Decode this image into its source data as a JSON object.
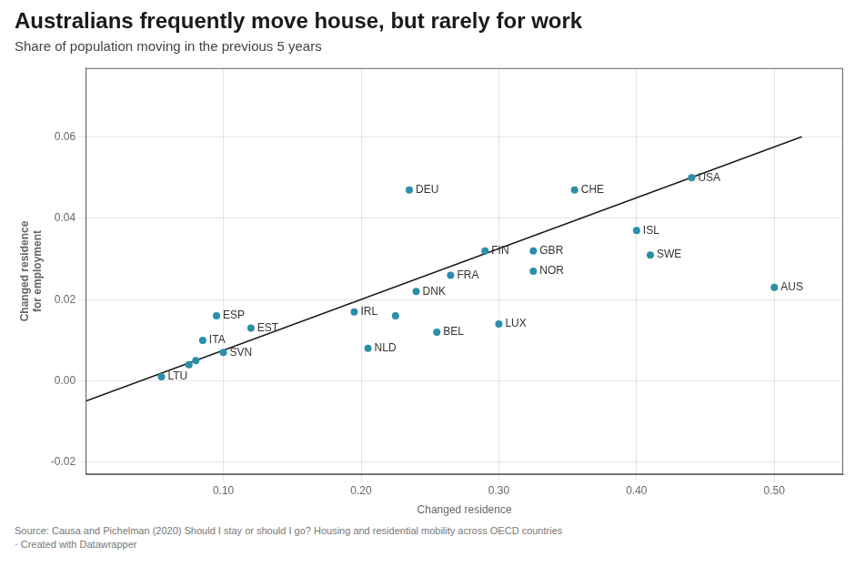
{
  "chart_data": {
    "type": "scatter",
    "title": "Australians frequently move house, but rarely for work",
    "subtitle": "Share of population moving in the previous 5 years",
    "x_label": "Changed residence",
    "y_label": "Changed residence\nfor employment",
    "source": "Source: Causa and Pichelman (2020) Should I stay or should I go? Housing and residential mobility across OECD countries\n· Created with Datawrapper",
    "xlim": [
      0.0,
      0.55
    ],
    "ylim": [
      -0.023,
      0.077
    ],
    "xticks": [
      {
        "value": 0.1,
        "label": "0.10"
      },
      {
        "value": 0.2,
        "label": "0.20"
      },
      {
        "value": 0.3,
        "label": "0.30"
      },
      {
        "value": 0.4,
        "label": "0.40"
      },
      {
        "value": 0.5,
        "label": "0.50"
      }
    ],
    "yticks": [
      -0.02,
      {
        "value": 0,
        "label": "0.00"
      },
      0.02,
      0.04,
      0.06
    ],
    "grid": true,
    "series": [
      {
        "type": "line",
        "x": [
          0.0,
          0.52
        ],
        "values": [
          -0.005,
          0.060104
        ],
        "color": "#1a1a1a"
      },
      {
        "type": "scatter",
        "x": [
          0.075,
          0.08,
          0.225
        ],
        "values": [
          0.004,
          0.005,
          0.016
        ],
        "color": "#2b8fa8"
      },
      {
        "type": "scatter",
        "x": [
          0.055,
          0.085,
          0.1,
          0.095,
          0.12,
          0.195,
          0.205,
          0.24,
          0.255,
          0.265,
          0.235,
          0.29,
          0.3,
          0.325,
          0.325,
          0.355,
          0.4,
          0.41,
          0.44,
          0.5
        ],
        "values": [
          0.001,
          0.01,
          0.007,
          0.016,
          0.013,
          0.017,
          0.008,
          0.022,
          0.012,
          0.026,
          0.047,
          0.032,
          0.014,
          0.032,
          0.027,
          0.047,
          0.037,
          0.031,
          0.05,
          0.023
        ],
        "labels": [
          "LTU",
          "ITA",
          "SVN",
          "ESP",
          "EST",
          "IRL",
          "NLD",
          "DNK",
          "BEL",
          "FRA",
          "DEU",
          "FIN",
          "LUX",
          "GBR",
          "NOR",
          "CHE",
          "ISL",
          "SWE",
          "USA",
          "AUS"
        ],
        "color": "#2b8fa8"
      }
    ]
  }
}
